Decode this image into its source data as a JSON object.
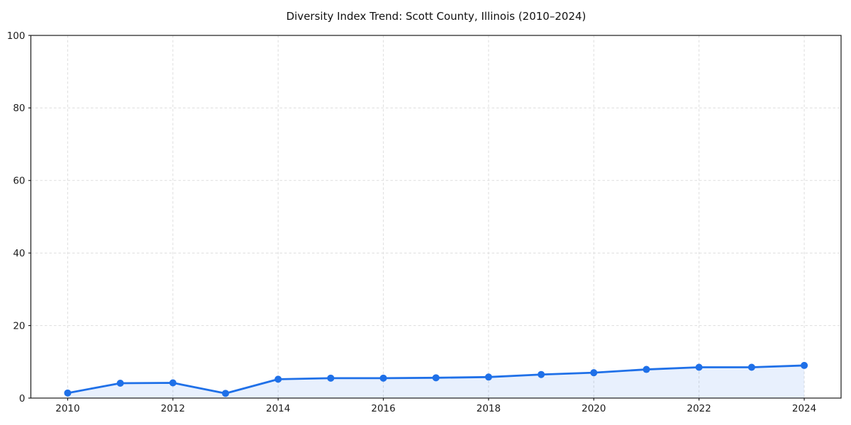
{
  "figure": {
    "background": "#ffffff"
  },
  "chart_data": {
    "type": "line",
    "title": "Diversity Index Trend: Scott County, Illinois (2010–2024)",
    "x": [
      2010,
      2011,
      2012,
      2013,
      2014,
      2015,
      2016,
      2017,
      2018,
      2019,
      2020,
      2021,
      2022,
      2023,
      2024
    ],
    "series": [
      {
        "name": "Diversity Index",
        "values": [
          1.4,
          4.1,
          4.2,
          1.3,
          5.2,
          5.5,
          5.5,
          5.6,
          5.8,
          6.5,
          7.0,
          7.9,
          8.5,
          8.5,
          9.0
        ]
      }
    ],
    "xlabel": "",
    "ylabel": "",
    "xlim": [
      2009.3,
      2024.7
    ],
    "ylim": [
      0,
      100
    ],
    "xticks": [
      2010,
      2012,
      2014,
      2016,
      2018,
      2020,
      2022,
      2024
    ],
    "yticks": [
      0,
      20,
      40,
      60,
      80,
      100
    ],
    "grid": {
      "visible": true,
      "style": "dashed",
      "on_xticks": true,
      "on_yticks": true
    },
    "legend": {
      "visible": false
    },
    "area_fill": true,
    "marker": "circle",
    "colors": {
      "line": "#1f70e8",
      "marker": "#1f70e8",
      "fill": "#1f70e8",
      "fill_opacity": 0.1,
      "grid": "#dedede",
      "spine": "#1c1c1c",
      "tick": "#1c1c1c",
      "tick_label": "#1c1c1c",
      "title": "#111111",
      "background": "#ffffff"
    }
  }
}
